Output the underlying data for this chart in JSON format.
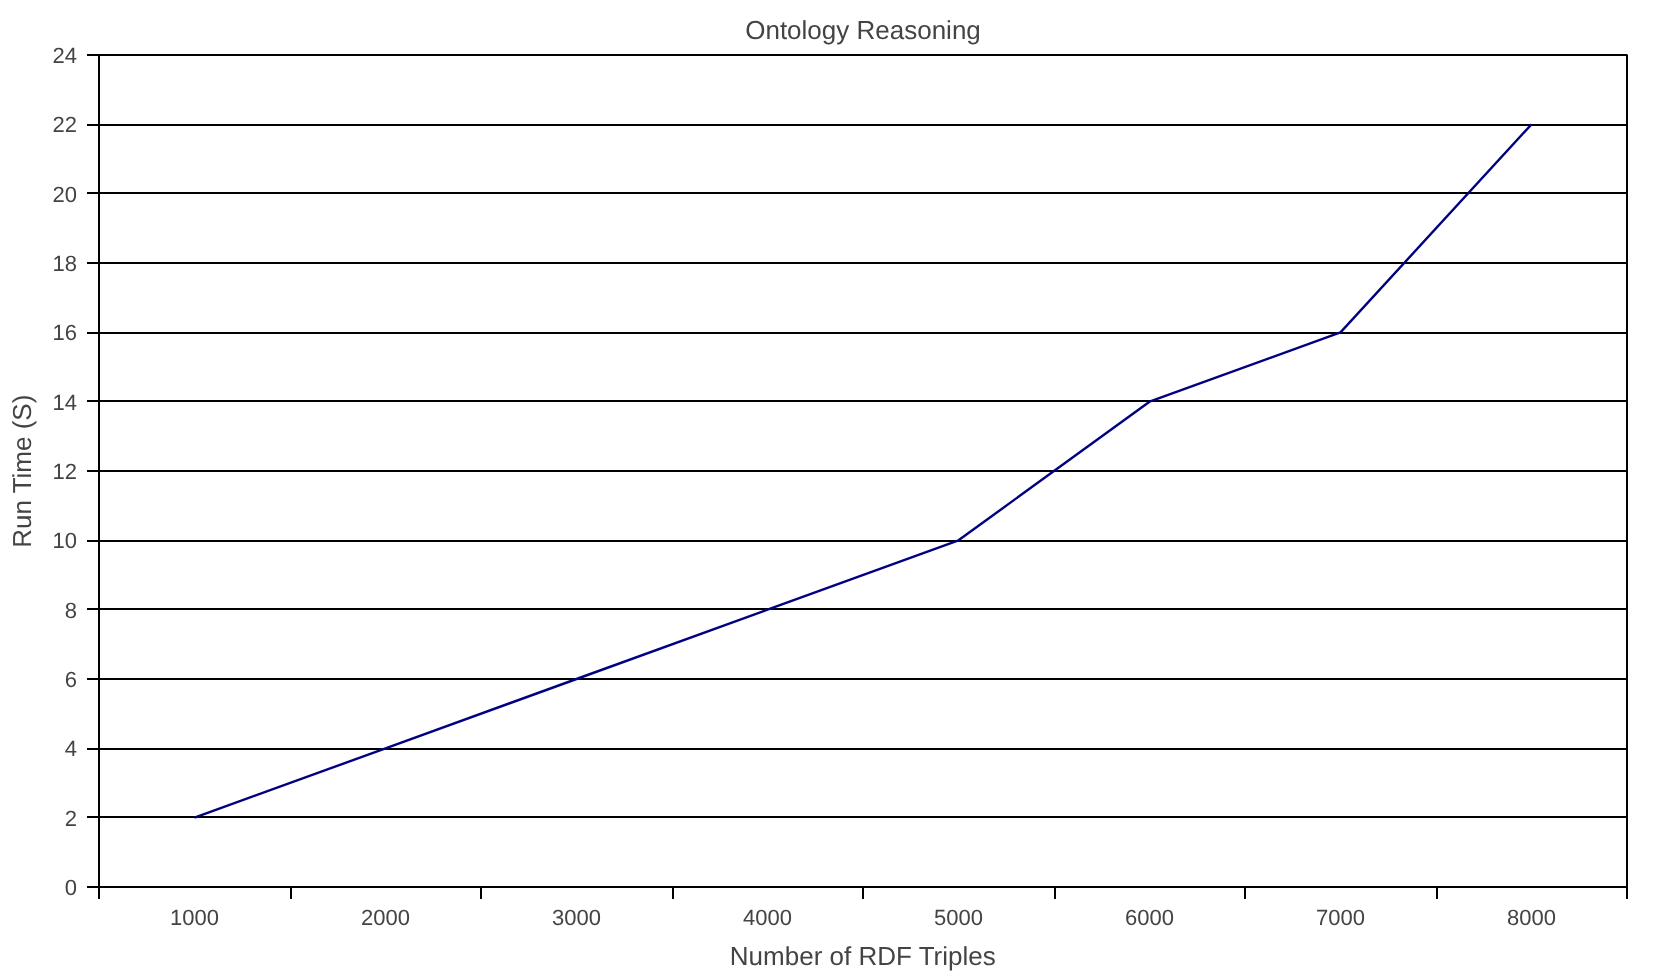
{
  "chart_data": {
    "type": "line",
    "title": "Ontology Reasoning",
    "xlabel": "Number of RDF Triples",
    "ylabel": "Run Time (S)",
    "categories": [
      "1000",
      "2000",
      "3000",
      "4000",
      "5000",
      "6000",
      "7000",
      "8000"
    ],
    "series": [
      {
        "color": "#000080",
        "values": [
          2,
          4,
          6,
          8,
          10,
          14,
          16,
          22
        ]
      }
    ],
    "ylim": [
      0,
      24
    ],
    "yticks": [
      0,
      2,
      4,
      6,
      8,
      10,
      12,
      14,
      16,
      18,
      20,
      22,
      24
    ],
    "grid": "y",
    "marker": "none",
    "line_style": "solid"
  }
}
